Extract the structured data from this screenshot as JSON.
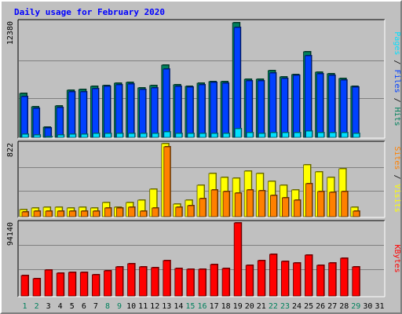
{
  "chart_data": {
    "type": "bar",
    "title": "Daily usage for February 2020",
    "categories": [
      "1",
      "2",
      "3",
      "4",
      "5",
      "6",
      "7",
      "8",
      "9",
      "10",
      "11",
      "12",
      "13",
      "14",
      "15",
      "16",
      "17",
      "18",
      "19",
      "20",
      "21",
      "22",
      "23",
      "24",
      "25",
      "26",
      "27",
      "28",
      "29",
      "30",
      "31"
    ],
    "weekend_days": [
      1,
      2,
      8,
      9,
      15,
      16,
      22,
      23,
      29
    ],
    "panels": [
      {
        "id": "hits",
        "max_label": "12380",
        "max_value": 12380,
        "axis_label_parts": [
          "Pages",
          "Files",
          "Hits"
        ],
        "axis_label_separator": " / ",
        "series": [
          {
            "name": "Hits",
            "values": [
              4790,
              3340,
              1140,
              3420,
              5090,
              5150,
              5480,
              5620,
              5850,
              5940,
              5360,
              5570,
              7760,
              5650,
              5510,
              5840,
              6020,
              6020,
              12380,
              6300,
              6240,
              7220,
              6540,
              6820,
              9280,
              7060,
              6850,
              6340,
              5550,
              0,
              0
            ]
          },
          {
            "name": "Files",
            "values": [
              4450,
              3110,
              1050,
              3190,
              4920,
              4880,
              5290,
              5480,
              5710,
              5730,
              5180,
              5350,
              7400,
              5470,
              5400,
              5660,
              5900,
              5880,
              11910,
              6140,
              6100,
              6960,
              6380,
              6700,
              8840,
              6900,
              6670,
              6200,
              5390,
              0,
              0
            ]
          },
          {
            "name": "Pages",
            "values": [
              310,
              220,
              90,
              240,
              360,
              380,
              400,
              410,
              440,
              450,
              390,
              420,
              560,
              430,
              410,
              430,
              450,
              450,
              900,
              470,
              460,
              520,
              480,
              500,
              660,
              520,
              510,
              470,
              410,
              0,
              0
            ]
          }
        ]
      },
      {
        "id": "visits",
        "max_label": "822",
        "max_value": 822,
        "axis_label_parts": [
          "Sites",
          "Visits"
        ],
        "axis_label_separator": " / ",
        "series": [
          {
            "name": "Visits",
            "values": [
              80,
              100,
              110,
              110,
              95,
              110,
              100,
              160,
              110,
              160,
              190,
              310,
              822,
              145,
              190,
              350,
              490,
              445,
              430,
              515,
              490,
              395,
              355,
              300,
              580,
              505,
              445,
              535,
              110,
              0,
              0
            ]
          },
          {
            "name": "Sites",
            "values": [
              55,
              60,
              65,
              60,
              60,
              65,
              60,
              100,
              95,
              110,
              65,
              100,
              785,
              110,
              125,
              200,
              300,
              285,
              265,
              300,
              295,
              235,
              210,
              190,
              370,
              285,
              270,
              285,
              65,
              0,
              0
            ]
          }
        ]
      },
      {
        "id": "kbytes",
        "max_label": "94140",
        "max_value": 94140,
        "axis_label_parts": [
          "KBytes"
        ],
        "axis_label_separator": "",
        "series": [
          {
            "name": "KBytes",
            "values": [
              26000,
              22200,
              32900,
              29000,
              30300,
              30100,
              27800,
              32100,
              37700,
              41100,
              37000,
              36100,
              45900,
              35600,
              34300,
              34300,
              40400,
              35500,
              94140,
              39800,
              46000,
              53800,
              44100,
              42400,
              53000,
              39800,
              42200,
              48400,
              37800,
              0,
              0
            ]
          }
        ]
      }
    ],
    "colors": {
      "Hits": "#00805c",
      "Files": "#0040ff",
      "Pages": "#00e0ff",
      "Visits": "#ffff00",
      "Sites": "#ff8000",
      "KBytes": "#ff0000",
      "weekday_label": "#000000",
      "weekend_label": "#00805c",
      "title": "#0000ff",
      "panel_bg": "#c0c0c0"
    }
  }
}
